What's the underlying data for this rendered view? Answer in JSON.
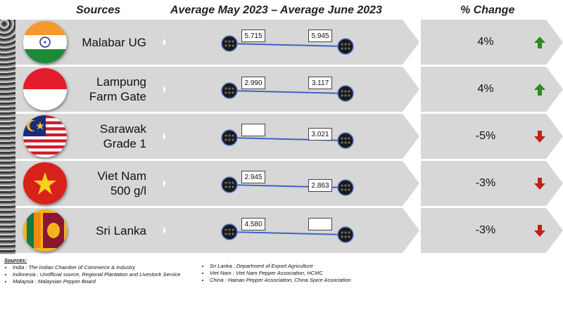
{
  "headers": {
    "sources": "Sources",
    "period": "Average May 2023 – Average June 2023",
    "change": "% Change"
  },
  "chart_data": {
    "type": "slope",
    "title": "Average May 2023 – Average June 2023",
    "categories": [
      "Malabar UG",
      "Lampung Farm Gate",
      "Sarawak Grade 1",
      "Viet Nam 500 g/l",
      "Sri Lanka"
    ],
    "series": [
      {
        "name": "Average May 2023",
        "values": [
          5.715,
          2.99,
          null,
          2.945,
          4.58
        ]
      },
      {
        "name": "Average June 2023",
        "values": [
          5.945,
          3.117,
          3.021,
          2.863,
          null
        ]
      }
    ],
    "percent_change": [
      "4%",
      "4%",
      "-5%",
      "-3%",
      "-3%"
    ],
    "direction": [
      "up",
      "up",
      "down",
      "down",
      "down"
    ]
  },
  "rows": [
    {
      "label": "Malabar UG",
      "flag": "india-flag-icon",
      "may": "5.715",
      "june": "5.945",
      "change": "4%",
      "trend": "up"
    },
    {
      "label": "Lampung\nFarm Gate",
      "flag": "indonesia-flag-icon",
      "may": "2.990",
      "june": "3.117",
      "change": "4%",
      "trend": "up"
    },
    {
      "label": "Sarawak\nGrade 1",
      "flag": "malaysia-flag-icon",
      "may": "",
      "june": "3.021",
      "change": "-5%",
      "trend": "down"
    },
    {
      "label": "Viet Nam\n500 g/l",
      "flag": "vietnam-flag-icon",
      "may": "2.945",
      "june": "2.863",
      "change": "-3%",
      "trend": "down"
    },
    {
      "label": "Sri Lanka",
      "flag": "sri-lanka-flag-icon",
      "may": "4.580",
      "june": "",
      "change": "-3%",
      "trend": "down"
    }
  ],
  "colors": {
    "up": "#2e8b1e",
    "down": "#c0201a",
    "line": "#3a66c4",
    "panel": "#d7d7d7"
  },
  "footer": {
    "title": "Sources:",
    "left": [
      "India : The Indian Chamber of Commerce & Industry",
      "Indonesia : Unofficial source, Regional Plantation and Livestock Service",
      "Malaysia : Malaysian Pepper Board"
    ],
    "right": [
      "Sri Lanka : Department of Export Agriculture",
      "Viet Nam : Viet Nam Pepper Association, HCMC",
      "China : Hainan Pepper Association, China Spice Association"
    ]
  }
}
